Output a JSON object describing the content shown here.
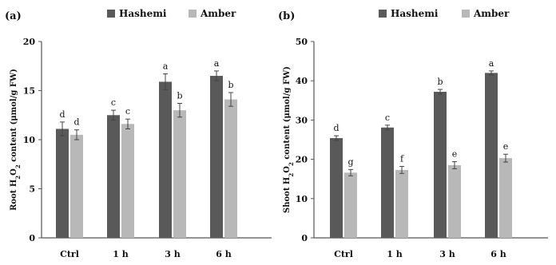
{
  "chart_data": [
    {
      "type": "bar",
      "panel_label": "(a)",
      "ylabel_parts": [
        "Root H",
        "2",
        "O",
        "2",
        " content (μmol/g FW)"
      ],
      "categories": [
        "Ctrl",
        "1 h",
        "3 h",
        "6 h"
      ],
      "ylim": [
        0,
        20
      ],
      "yticks": [
        0,
        5,
        10,
        15,
        20
      ],
      "grid": false,
      "legend_position": "top",
      "series": [
        {
          "name": "Hashemi",
          "color": "#595959",
          "values": [
            11.1,
            12.5,
            15.9,
            16.5
          ],
          "errors": [
            0.7,
            0.5,
            0.8,
            0.5
          ],
          "labels": [
            "d",
            "c",
            "a",
            "a"
          ]
        },
        {
          "name": "Amber",
          "color": "#b8b8b8",
          "values": [
            10.5,
            11.6,
            13.0,
            14.1
          ],
          "errors": [
            0.5,
            0.5,
            0.7,
            0.7
          ],
          "labels": [
            "d",
            "c",
            "b",
            "b"
          ]
        }
      ]
    },
    {
      "type": "bar",
      "panel_label": "(b)",
      "ylabel_parts": [
        "Shoot H",
        "2",
        "O",
        "2",
        " content (μmol/g FW)"
      ],
      "categories": [
        "Ctrl",
        "1 h",
        "3 h",
        "6 h"
      ],
      "ylim": [
        0,
        50
      ],
      "yticks": [
        0,
        10,
        20,
        30,
        40,
        50
      ],
      "grid": false,
      "legend_position": "top",
      "series": [
        {
          "name": "Hashemi",
          "color": "#595959",
          "values": [
            25.4,
            28.1,
            37.2,
            42.0
          ],
          "errors": [
            0.6,
            0.6,
            0.6,
            0.5
          ],
          "labels": [
            "d",
            "c",
            "b",
            "a"
          ]
        },
        {
          "name": "Amber",
          "color": "#b8b8b8",
          "values": [
            16.6,
            17.3,
            18.5,
            20.3
          ],
          "errors": [
            0.8,
            0.9,
            0.9,
            1.0
          ],
          "labels": [
            "g",
            "f",
            "e",
            "e"
          ]
        }
      ]
    }
  ]
}
